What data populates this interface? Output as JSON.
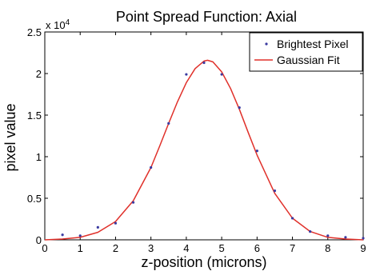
{
  "chart_data": {
    "type": "scatter",
    "title": "Point Spread Function: Axial",
    "xlabel": "z-position (microns)",
    "ylabel": "pixel value",
    "y_multiplier_base": "x 10",
    "y_multiplier_exp": "4",
    "xlim": [
      0,
      9
    ],
    "ylim": [
      0,
      2.5
    ],
    "x_ticks": [
      "0",
      "1",
      "2",
      "3",
      "4",
      "5",
      "6",
      "7",
      "8",
      "9"
    ],
    "y_ticks": [
      "0",
      "0.5",
      "1",
      "1.5",
      "2",
      "2.5"
    ],
    "grid": false,
    "legend_position": "top-right",
    "series": [
      {
        "name": "Brightest Pixel",
        "type": "scatter",
        "color": "#3a3aa0",
        "x": [
          0.5,
          1.0,
          1.5,
          2.0,
          2.5,
          3.0,
          3.5,
          4.0,
          4.5,
          5.0,
          5.5,
          6.0,
          6.5,
          7.0,
          7.5,
          8.0,
          8.5,
          9.0
        ],
        "y": [
          0.06,
          0.05,
          0.15,
          0.2,
          0.45,
          0.87,
          1.4,
          1.99,
          2.13,
          1.99,
          1.59,
          1.07,
          0.59,
          0.26,
          0.1,
          0.05,
          0.03,
          0.02
        ]
      },
      {
        "name": "Gaussian Fit",
        "type": "line",
        "color": "#e0302a",
        "x": [
          0.0,
          0.5,
          1.0,
          1.5,
          2.0,
          2.5,
          3.0,
          3.25,
          3.5,
          3.75,
          4.0,
          4.25,
          4.5,
          4.6,
          4.75,
          5.0,
          5.25,
          5.5,
          5.75,
          6.0,
          6.5,
          7.0,
          7.5,
          8.0,
          8.5,
          9.0
        ],
        "y": [
          0.0,
          0.01,
          0.03,
          0.09,
          0.22,
          0.47,
          0.87,
          1.13,
          1.4,
          1.66,
          1.89,
          2.06,
          2.15,
          2.16,
          2.14,
          2.02,
          1.82,
          1.57,
          1.29,
          1.02,
          0.56,
          0.26,
          0.1,
          0.03,
          0.01,
          0.0
        ]
      }
    ]
  }
}
